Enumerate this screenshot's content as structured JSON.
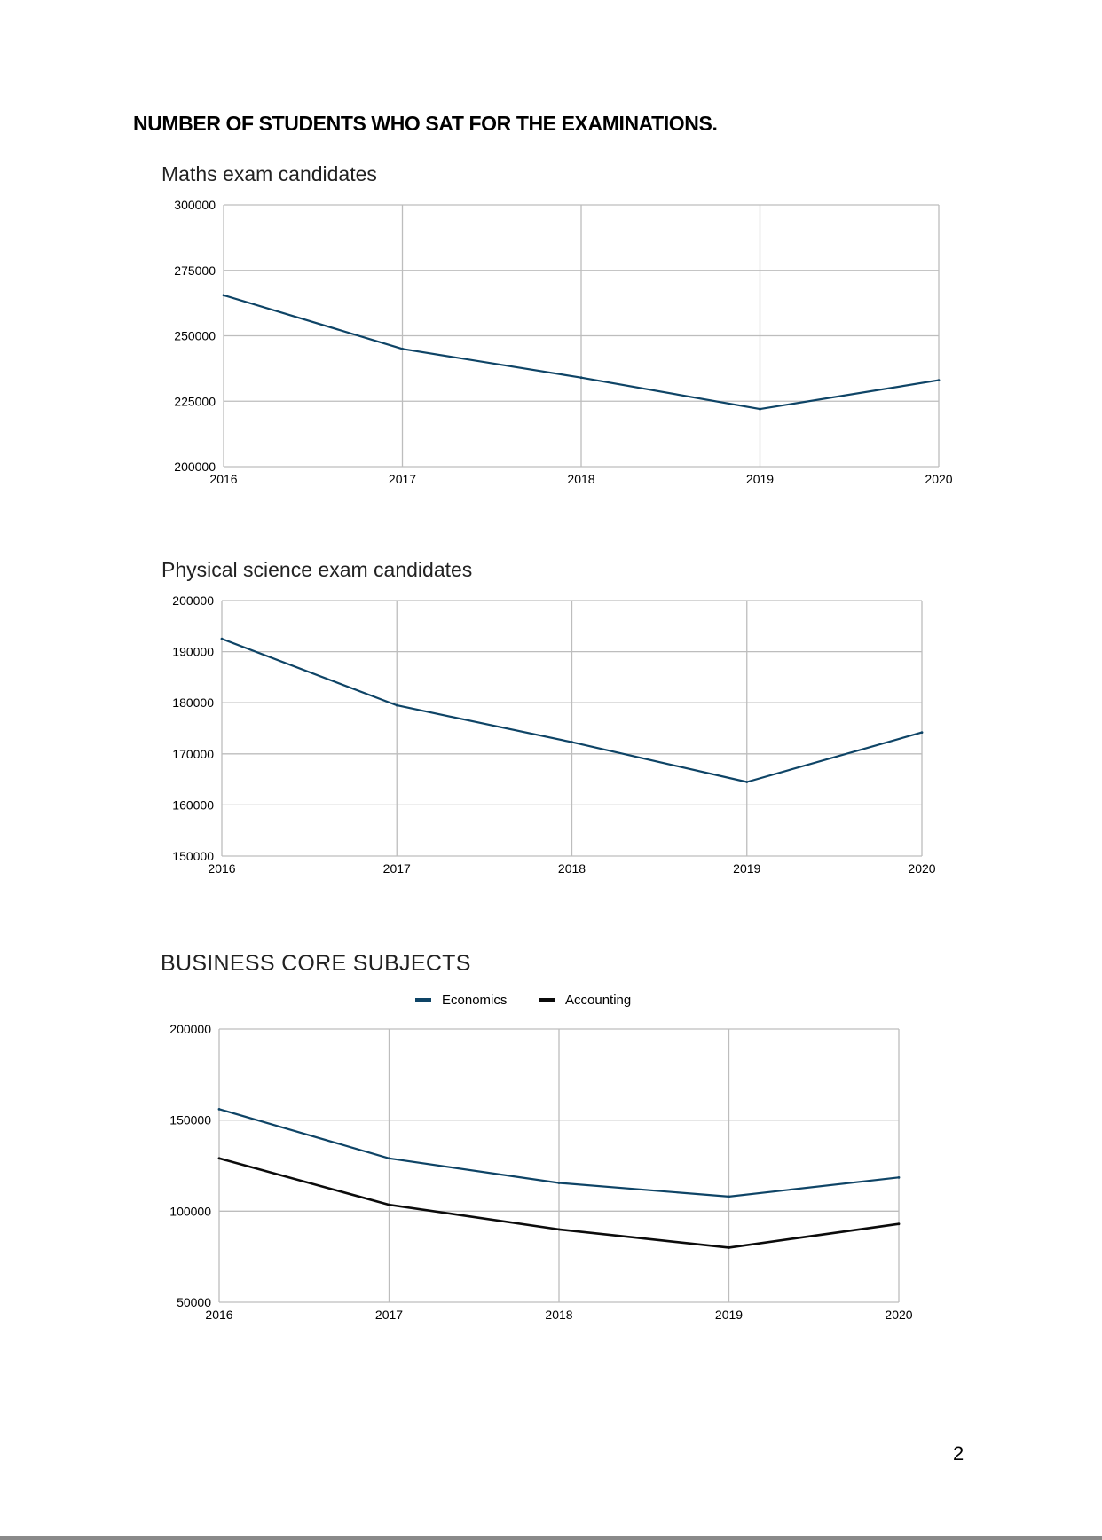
{
  "page": {
    "heading": "NUMBER OF STUDENTS WHO SAT FOR THE EXAMINATIONS.",
    "page_number": "2"
  },
  "colors": {
    "series_blue": "#0e4466",
    "series_black": "#0b0b0b",
    "grid": "#bdbdbd"
  },
  "chart_data": [
    {
      "type": "line",
      "title": "Maths exam candidates",
      "x": [
        "2016",
        "2017",
        "2018",
        "2019",
        "2020"
      ],
      "series": [
        {
          "values": [
            265500,
            245000,
            234000,
            222000,
            233000
          ],
          "color": "#0e4466"
        }
      ],
      "y_ticks": [
        300000,
        275000,
        250000,
        225000,
        200000
      ],
      "ylim": [
        200000,
        300000
      ],
      "grid": true,
      "legend": "none"
    },
    {
      "type": "line",
      "title": "Physical science exam candidates",
      "x": [
        "2016",
        "2017",
        "2018",
        "2019",
        "2020"
      ],
      "series": [
        {
          "values": [
            192500,
            179500,
            172300,
            164500,
            174200
          ],
          "color": "#0e4466"
        }
      ],
      "y_ticks": [
        200000,
        190000,
        180000,
        170000,
        160000,
        150000
      ],
      "ylim": [
        150000,
        200000
      ],
      "grid": true,
      "legend": "none"
    },
    {
      "type": "line",
      "title": "BUSINESS CORE SUBJECTS",
      "x": [
        "2016",
        "2017",
        "2018",
        "2019",
        "2020"
      ],
      "series": [
        {
          "name": "Economics",
          "values": [
            156000,
            129000,
            115500,
            108000,
            118500
          ],
          "color": "#0e4466"
        },
        {
          "name": "Accounting",
          "values": [
            129000,
            103500,
            90000,
            80000,
            93000
          ],
          "color": "#0b0b0b"
        }
      ],
      "y_ticks": [
        200000,
        150000,
        100000,
        50000
      ],
      "ylim": [
        50000,
        200000
      ],
      "grid": true,
      "legend": "top-center"
    }
  ]
}
